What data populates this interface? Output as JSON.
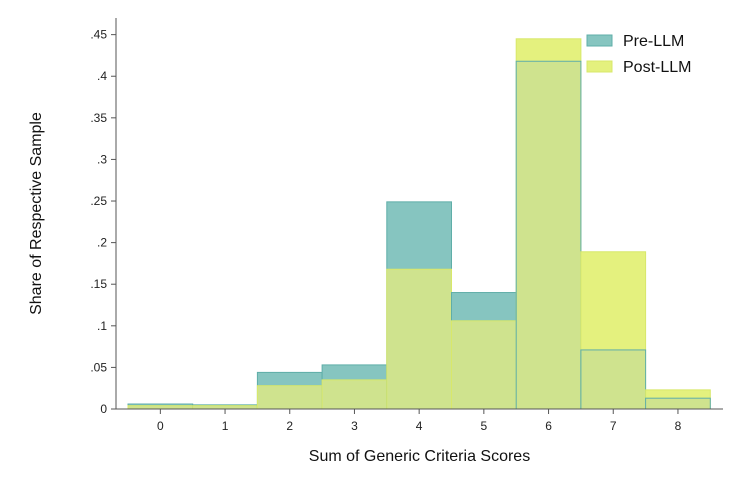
{
  "chart_data": {
    "type": "bar",
    "categories": [
      "0",
      "1",
      "2",
      "3",
      "4",
      "5",
      "6",
      "7",
      "8"
    ],
    "series": [
      {
        "name": "Pre-LLM",
        "values": [
          0.006,
          0.005,
          0.044,
          0.053,
          0.249,
          0.14,
          0.418,
          0.071,
          0.013
        ],
        "color": "#86C5C0",
        "stroke": "#5FAEA8"
      },
      {
        "name": "Post-LLM",
        "values": [
          0.004,
          0.004,
          0.028,
          0.035,
          0.168,
          0.106,
          0.445,
          0.189,
          0.023
        ],
        "color": "#E4F17E",
        "stroke": "#D8E86A"
      }
    ],
    "overlap_color": "#CFE38E",
    "xlabel": "Sum of Generic Criteria Scores",
    "ylabel": "Share of Respective Sample",
    "ylim": [
      0,
      0.47
    ],
    "yticks": [
      {
        "value": 0,
        "label": "0"
      },
      {
        "value": 0.05,
        "label": ".05"
      },
      {
        "value": 0.1,
        "label": ".1"
      },
      {
        "value": 0.15,
        "label": ".15"
      },
      {
        "value": 0.2,
        "label": ".2"
      },
      {
        "value": 0.25,
        "label": ".25"
      },
      {
        "value": 0.3,
        "label": ".3"
      },
      {
        "value": 0.35,
        "label": ".35"
      },
      {
        "value": 0.4,
        "label": ".4"
      },
      {
        "value": 0.45,
        "label": ".45"
      }
    ],
    "grid": false,
    "legend_position": "top-right"
  }
}
